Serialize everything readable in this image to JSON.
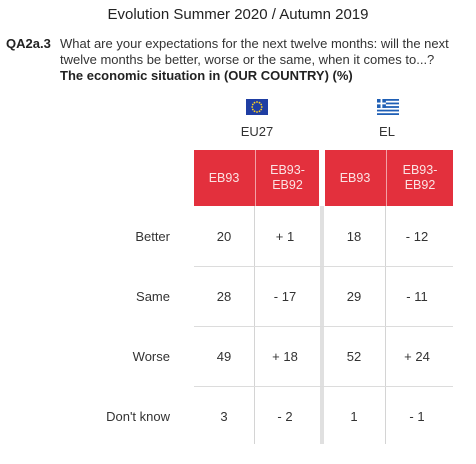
{
  "headline": "Evolution Summer 2020 / Autumn 2019",
  "question": {
    "code": "QA2a.3",
    "text": "What are your expectations for the next twelve months: will the next twelve months be better, worse or the same, when it comes to...?",
    "subtitle": "The economic situation in (OUR COUNTRY) (%)"
  },
  "chart_data": {
    "type": "table",
    "groups": [
      {
        "name": "EU27",
        "flag": "eu-flag-icon",
        "columns": [
          "EB93",
          "EB93-\nEB92"
        ]
      },
      {
        "name": "EL",
        "flag": "greece-flag-icon",
        "columns": [
          "EB93",
          "EB93-\nEB92"
        ]
      }
    ],
    "rows": [
      {
        "label": "Better",
        "values": [
          "20",
          "+ 1",
          "18",
          "- 12"
        ]
      },
      {
        "label": "Same",
        "values": [
          "28",
          "- 17",
          "29",
          "- 11"
        ]
      },
      {
        "label": "Worse",
        "values": [
          "49",
          "+ 18",
          "52",
          "+ 24"
        ]
      },
      {
        "label": "Don't know",
        "values": [
          "3",
          "- 2",
          "1",
          "- 1"
        ]
      }
    ]
  },
  "colors": {
    "header_bg": "#e3303d",
    "header_text": "#fbe3e4",
    "eu_blue": "#1f3ea3",
    "gr_blue": "#1f5fb5"
  }
}
